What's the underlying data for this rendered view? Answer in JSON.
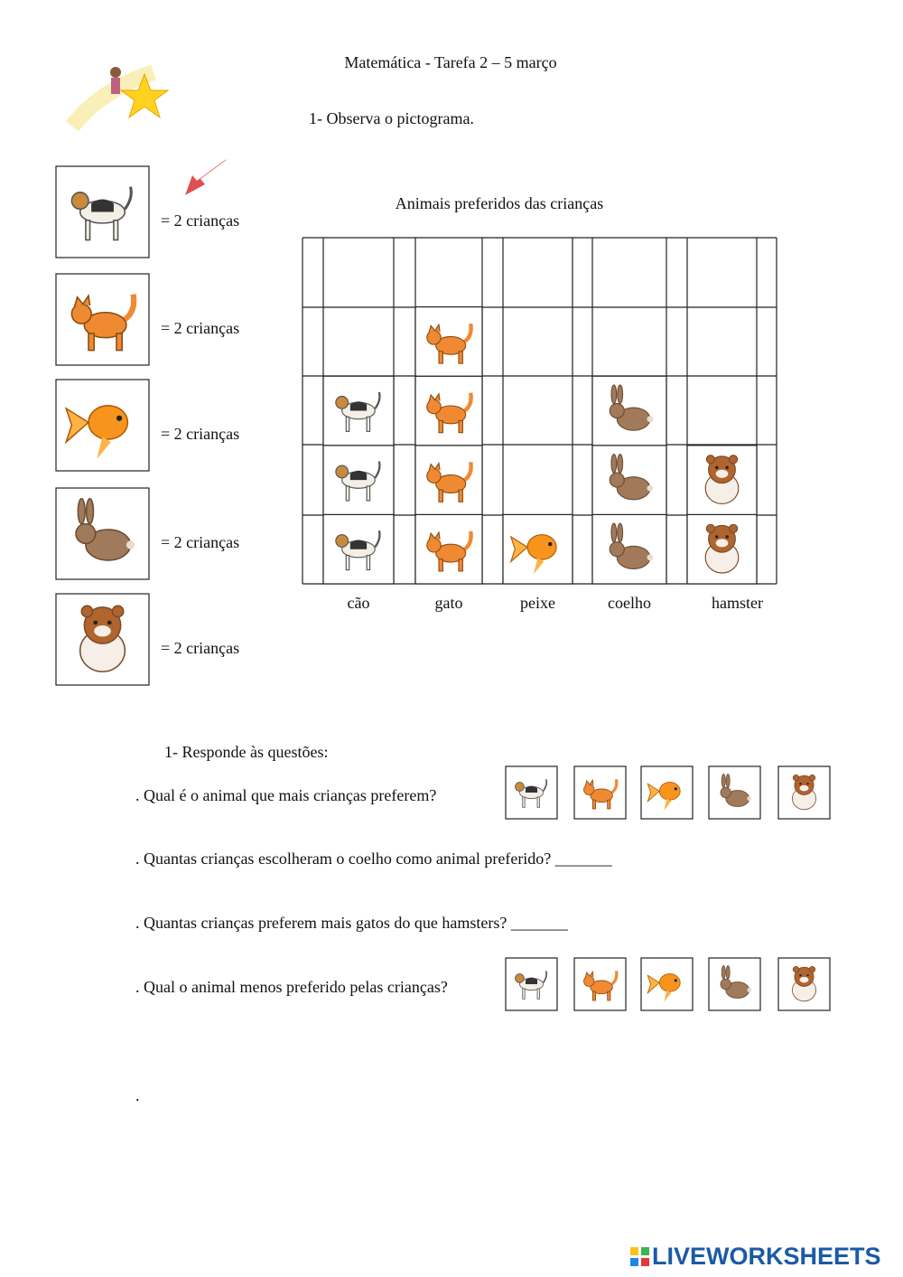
{
  "header": {
    "title": "Matemática - Tarefa 2 – 5 março",
    "instruction": "1- Observa o pictograma."
  },
  "key": {
    "items": [
      "= 2 crianças",
      "= 2 crianças",
      "= 2 crianças",
      "= 2 crianças",
      "= 2 crianças"
    ]
  },
  "pictogram": {
    "title": "Animais preferidos das crianças",
    "categories": [
      "cão",
      "gato",
      "peixe",
      "coelho",
      "hamster"
    ],
    "icons": [
      3,
      4,
      1,
      3,
      2
    ]
  },
  "questions": {
    "heading": "1-   Responde às questões:",
    "items": [
      ". Qual é o animal que mais crianças preferem?",
      ". Quantas crianças escolheram o coelho como animal preferido?  _______",
      ". Quantas crianças preferem mais gatos do que hamsters? _______",
      ". Qual o animal menos preferido pelas crianças?"
    ],
    "end": "."
  },
  "footer": {
    "brand": "LIVEWORKSHEETS"
  }
}
